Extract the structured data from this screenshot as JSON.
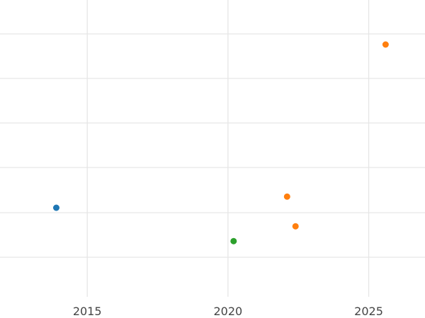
{
  "chart_data": {
    "type": "scatter",
    "title": "",
    "xlabel": "",
    "ylabel": "",
    "x_ticks": [
      "2015",
      "2020",
      "2025"
    ],
    "xlim": [
      2011.9,
      2027.0
    ],
    "grid": true,
    "legend": "none",
    "series": [
      {
        "color": "#1f77b4",
        "points": [
          {
            "x": 2013.9,
            "y": 3.2
          }
        ]
      },
      {
        "color": "#ff7f0e",
        "points": [
          {
            "x": 2025.6,
            "y": 5.4
          },
          {
            "x": 2022.1,
            "y": 3.35
          },
          {
            "x": 2022.4,
            "y": 2.95
          }
        ]
      },
      {
        "color": "#2ca02c",
        "points": [
          {
            "x": 2020.2,
            "y": 2.75
          }
        ]
      }
    ]
  }
}
